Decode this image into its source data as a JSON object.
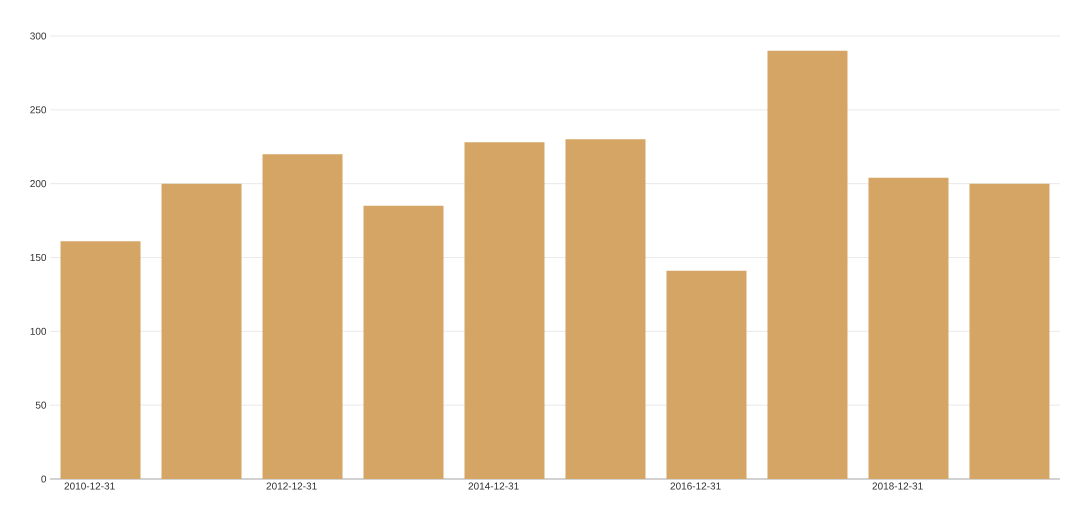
{
  "chart_data": {
    "type": "bar",
    "categories": [
      "2010-12-31",
      null,
      "2012-12-31",
      null,
      "2014-12-31",
      null,
      "2016-12-31",
      null,
      "2018-12-31",
      null
    ],
    "values": [
      161,
      200,
      220,
      185,
      228,
      230,
      141,
      290,
      204,
      200
    ],
    "color": "#d4a564",
    "ylim": [
      0,
      300
    ],
    "yticks": [
      0,
      50,
      100,
      150,
      200,
      250,
      300
    ],
    "grid": "y"
  }
}
